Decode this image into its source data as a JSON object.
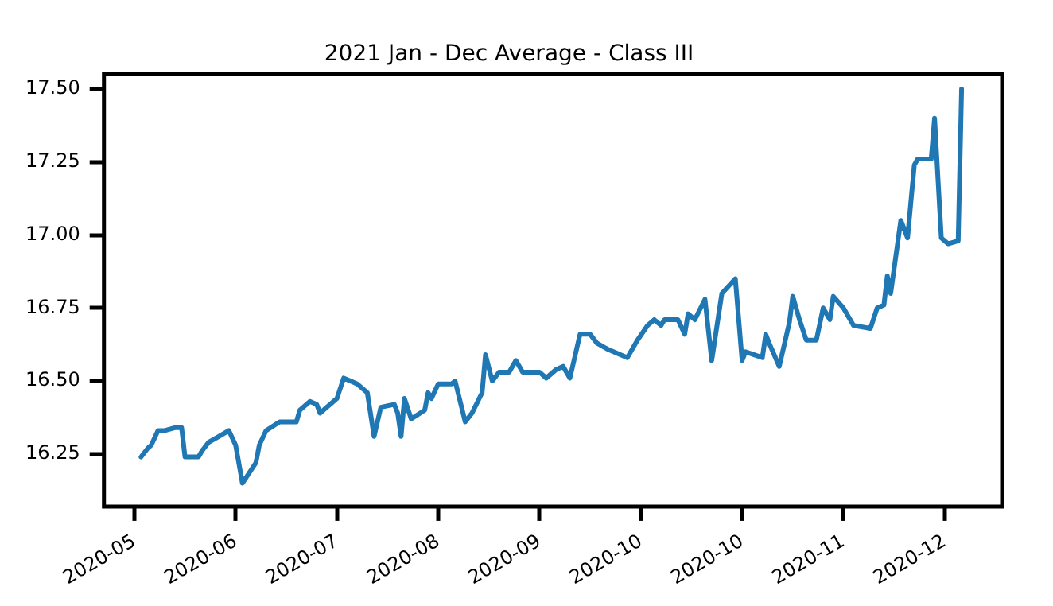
{
  "chart_data": {
    "type": "line",
    "title": "2021 Jan - Dec Average - Class III",
    "x": [
      "2020-05-06",
      "2020-05-08",
      "2020-05-09",
      "2020-05-11",
      "2020-05-13",
      "2020-05-16",
      "2020-05-18",
      "2020-05-19",
      "2020-05-23",
      "2020-05-24",
      "2020-05-26",
      "2020-05-29",
      "2020-06-01",
      "2020-06-03",
      "2020-06-05",
      "2020-06-09",
      "2020-06-10",
      "2020-06-12",
      "2020-06-16",
      "2020-06-18",
      "2020-06-21",
      "2020-06-22",
      "2020-06-25",
      "2020-06-27",
      "2020-06-28",
      "2020-06-30",
      "2020-07-03",
      "2020-07-05",
      "2020-07-07",
      "2020-07-09",
      "2020-07-12",
      "2020-07-14",
      "2020-07-16",
      "2020-07-20",
      "2020-07-21",
      "2020-07-22",
      "2020-07-23",
      "2020-07-25",
      "2020-07-29",
      "2020-07-30",
      "2020-07-31",
      "2020-08-02",
      "2020-08-06",
      "2020-08-07",
      "2020-08-10",
      "2020-08-12",
      "2020-08-15",
      "2020-08-16",
      "2020-08-18",
      "2020-08-20",
      "2020-08-23",
      "2020-08-25",
      "2020-08-27",
      "2020-09-01",
      "2020-09-03",
      "2020-09-06",
      "2020-09-08",
      "2020-09-10",
      "2020-09-13",
      "2020-09-16",
      "2020-09-18",
      "2020-09-21",
      "2020-09-27",
      "2020-09-30",
      "2020-10-03",
      "2020-10-05",
      "2020-10-07",
      "2020-10-08",
      "2020-10-12",
      "2020-10-14",
      "2020-10-15",
      "2020-10-17",
      "2020-10-20",
      "2020-10-22",
      "2020-10-25",
      "2020-10-29",
      "2020-10-31",
      "2020-11-01",
      "2020-11-06",
      "2020-11-07",
      "2020-11-08",
      "2020-11-11",
      "2020-11-14",
      "2020-11-15",
      "2020-11-17",
      "2020-11-19",
      "2020-11-22",
      "2020-11-24",
      "2020-11-26",
      "2020-11-27",
      "2020-11-30",
      "2020-12-03",
      "2020-12-08",
      "2020-12-10",
      "2020-12-12",
      "2020-12-13",
      "2020-12-14",
      "2020-12-17",
      "2020-12-19",
      "2020-12-21",
      "2020-12-22",
      "2020-12-26",
      "2020-12-27",
      "2020-12-29",
      "2020-12-31",
      "2021-01-03",
      "2021-01-04"
    ],
    "series": [
      {
        "color": "#1f77b4",
        "values": [
          16.24,
          16.27,
          16.28,
          16.33,
          16.33,
          16.34,
          16.34,
          16.24,
          16.24,
          16.26,
          16.29,
          16.31,
          16.33,
          16.28,
          16.15,
          16.22,
          16.28,
          16.33,
          16.36,
          16.36,
          16.36,
          16.4,
          16.43,
          16.42,
          16.39,
          16.41,
          16.44,
          16.51,
          16.5,
          16.49,
          16.46,
          16.31,
          16.41,
          16.42,
          16.39,
          16.31,
          16.44,
          16.37,
          16.4,
          16.46,
          16.44,
          16.49,
          16.49,
          16.5,
          16.36,
          16.39,
          16.46,
          16.59,
          16.5,
          16.53,
          16.53,
          16.57,
          16.53,
          16.53,
          16.51,
          16.54,
          16.55,
          16.51,
          16.66,
          16.66,
          16.63,
          16.61,
          16.58,
          16.64,
          16.69,
          16.71,
          16.69,
          16.71,
          16.71,
          16.66,
          16.73,
          16.71,
          16.78,
          16.57,
          16.8,
          16.85,
          16.57,
          16.6,
          16.58,
          16.66,
          16.63,
          16.55,
          16.7,
          16.79,
          16.71,
          16.64,
          16.64,
          16.75,
          16.71,
          16.79,
          16.75,
          16.69,
          16.68,
          16.75,
          16.76,
          16.86,
          16.8,
          17.05,
          16.99,
          17.24,
          17.26,
          17.26,
          17.4,
          16.99,
          16.97,
          16.98,
          17.5
        ]
      }
    ],
    "xlim": [
      "2020-04-25",
      "2021-01-16"
    ],
    "xticks": [
      {
        "value": "2020-05-04",
        "label": "2020-05"
      },
      {
        "value": "2020-06-03",
        "label": "2020-06"
      },
      {
        "value": "2020-07-03",
        "label": "2020-07"
      },
      {
        "value": "2020-08-02",
        "label": "2020-08"
      },
      {
        "value": "2020-09-01",
        "label": "2020-09"
      },
      {
        "value": "2020-10-01",
        "label": "2020-10"
      },
      {
        "value": "2020-10-31",
        "label": "2020-10"
      },
      {
        "value": "2020-11-30",
        "label": "2020-11"
      },
      {
        "value": "2020-12-30",
        "label": "2020-12"
      }
    ],
    "ylim": [
      16.07,
      17.55
    ],
    "yticks": [
      {
        "value": 16.25,
        "label": "16.25"
      },
      {
        "value": 16.5,
        "label": "16.50"
      },
      {
        "value": 16.75,
        "label": "16.75"
      },
      {
        "value": 17,
        "label": "17.00"
      },
      {
        "value": 17.25,
        "label": "17.25"
      },
      {
        "value": 17.5,
        "label": "17.50"
      }
    ],
    "grid": false,
    "legend": false,
    "marker": "none",
    "line_style": "solid"
  }
}
